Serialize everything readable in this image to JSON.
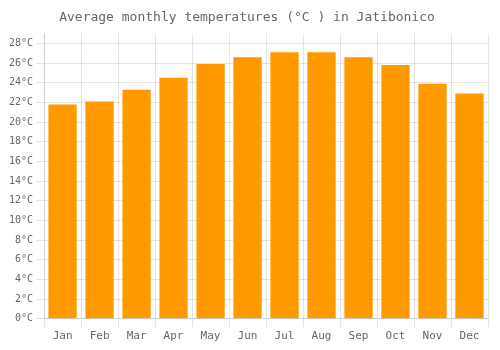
{
  "chart_data": {
    "type": "bar",
    "title": "Average monthly temperatures (°C ) in Jatibonico",
    "categories": [
      "Jan",
      "Feb",
      "Mar",
      "Apr",
      "May",
      "Jun",
      "Jul",
      "Aug",
      "Sep",
      "Oct",
      "Nov",
      "Dec"
    ],
    "values": [
      21.8,
      22.1,
      23.3,
      24.5,
      25.9,
      26.6,
      27.1,
      27.1,
      26.6,
      25.8,
      23.9,
      22.9
    ],
    "color": "#FF9900",
    "ylim": [
      0,
      29
    ],
    "yticks": [
      {
        "value": 0,
        "label": "0°C"
      },
      {
        "value": 2,
        "label": "2°C"
      },
      {
        "value": 4,
        "label": "4°C"
      },
      {
        "value": 6,
        "label": "6°C"
      },
      {
        "value": 8,
        "label": "8°C"
      },
      {
        "value": 10,
        "label": "10°C"
      },
      {
        "value": 12,
        "label": "12°C"
      },
      {
        "value": 14,
        "label": "14°C"
      },
      {
        "value": 16,
        "label": "16°C"
      },
      {
        "value": 18,
        "label": "18°C"
      },
      {
        "value": 20,
        "label": "20°C"
      },
      {
        "value": 22,
        "label": "22°C"
      },
      {
        "value": 24,
        "label": "24°C"
      },
      {
        "value": 26,
        "label": "26°C"
      },
      {
        "value": 28,
        "label": "28°C"
      }
    ],
    "grid": true
  }
}
